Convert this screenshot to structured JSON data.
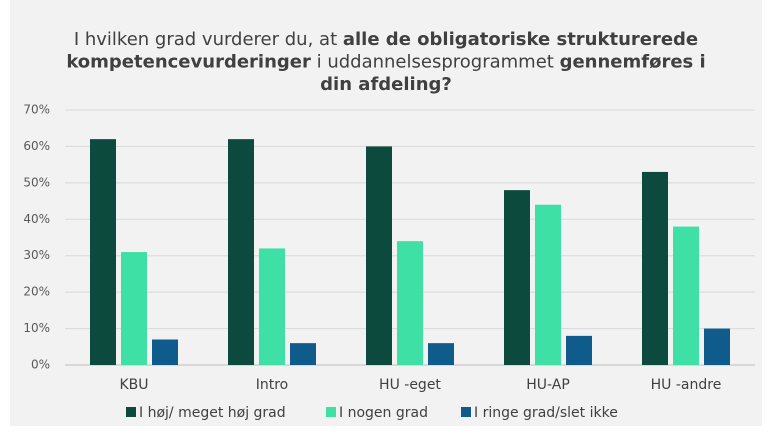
{
  "chart_data": {
    "type": "bar",
    "title": [
      [
        {
          "text": "I hvilken grad vurderer du, at ",
          "bold": false
        },
        {
          "text": "alle de obligatoriske strukturerede",
          "bold": true
        }
      ],
      [
        {
          "text": "kompetencevurderinger",
          "bold": true
        },
        {
          "text": " i uddannelsesprogrammet ",
          "bold": false
        },
        {
          "text": "gennemføres i",
          "bold": true
        }
      ],
      [
        {
          "text": "din afdeling?",
          "bold": true
        }
      ]
    ],
    "categories": [
      "KBU",
      "Intro",
      "HU -eget",
      "HU-AP",
      "HU -andre"
    ],
    "series": [
      {
        "name": "I høj/ meget høj grad",
        "color": "#0b4a3c",
        "values": [
          62,
          62,
          60,
          48,
          53
        ]
      },
      {
        "name": "I nogen grad",
        "color": "#3ee0a5",
        "values": [
          31,
          32,
          34,
          44,
          38
        ]
      },
      {
        "name": "I ringe grad/slet ikke",
        "color": "#0f5c8c",
        "values": [
          7,
          6,
          6,
          8,
          10
        ]
      }
    ],
    "ylim": [
      0,
      70
    ],
    "yticks": [
      {
        "value": 0,
        "label": "0%"
      },
      {
        "value": 10,
        "label": "10%"
      },
      {
        "value": 20,
        "label": "20%"
      },
      {
        "value": 30,
        "label": "30%"
      },
      {
        "value": 40,
        "label": "40%"
      },
      {
        "value": 50,
        "label": "50%"
      },
      {
        "value": 60,
        "label": "60%"
      },
      {
        "value": 70,
        "label": "70%"
      }
    ],
    "grid": true,
    "legend": "bottom"
  }
}
